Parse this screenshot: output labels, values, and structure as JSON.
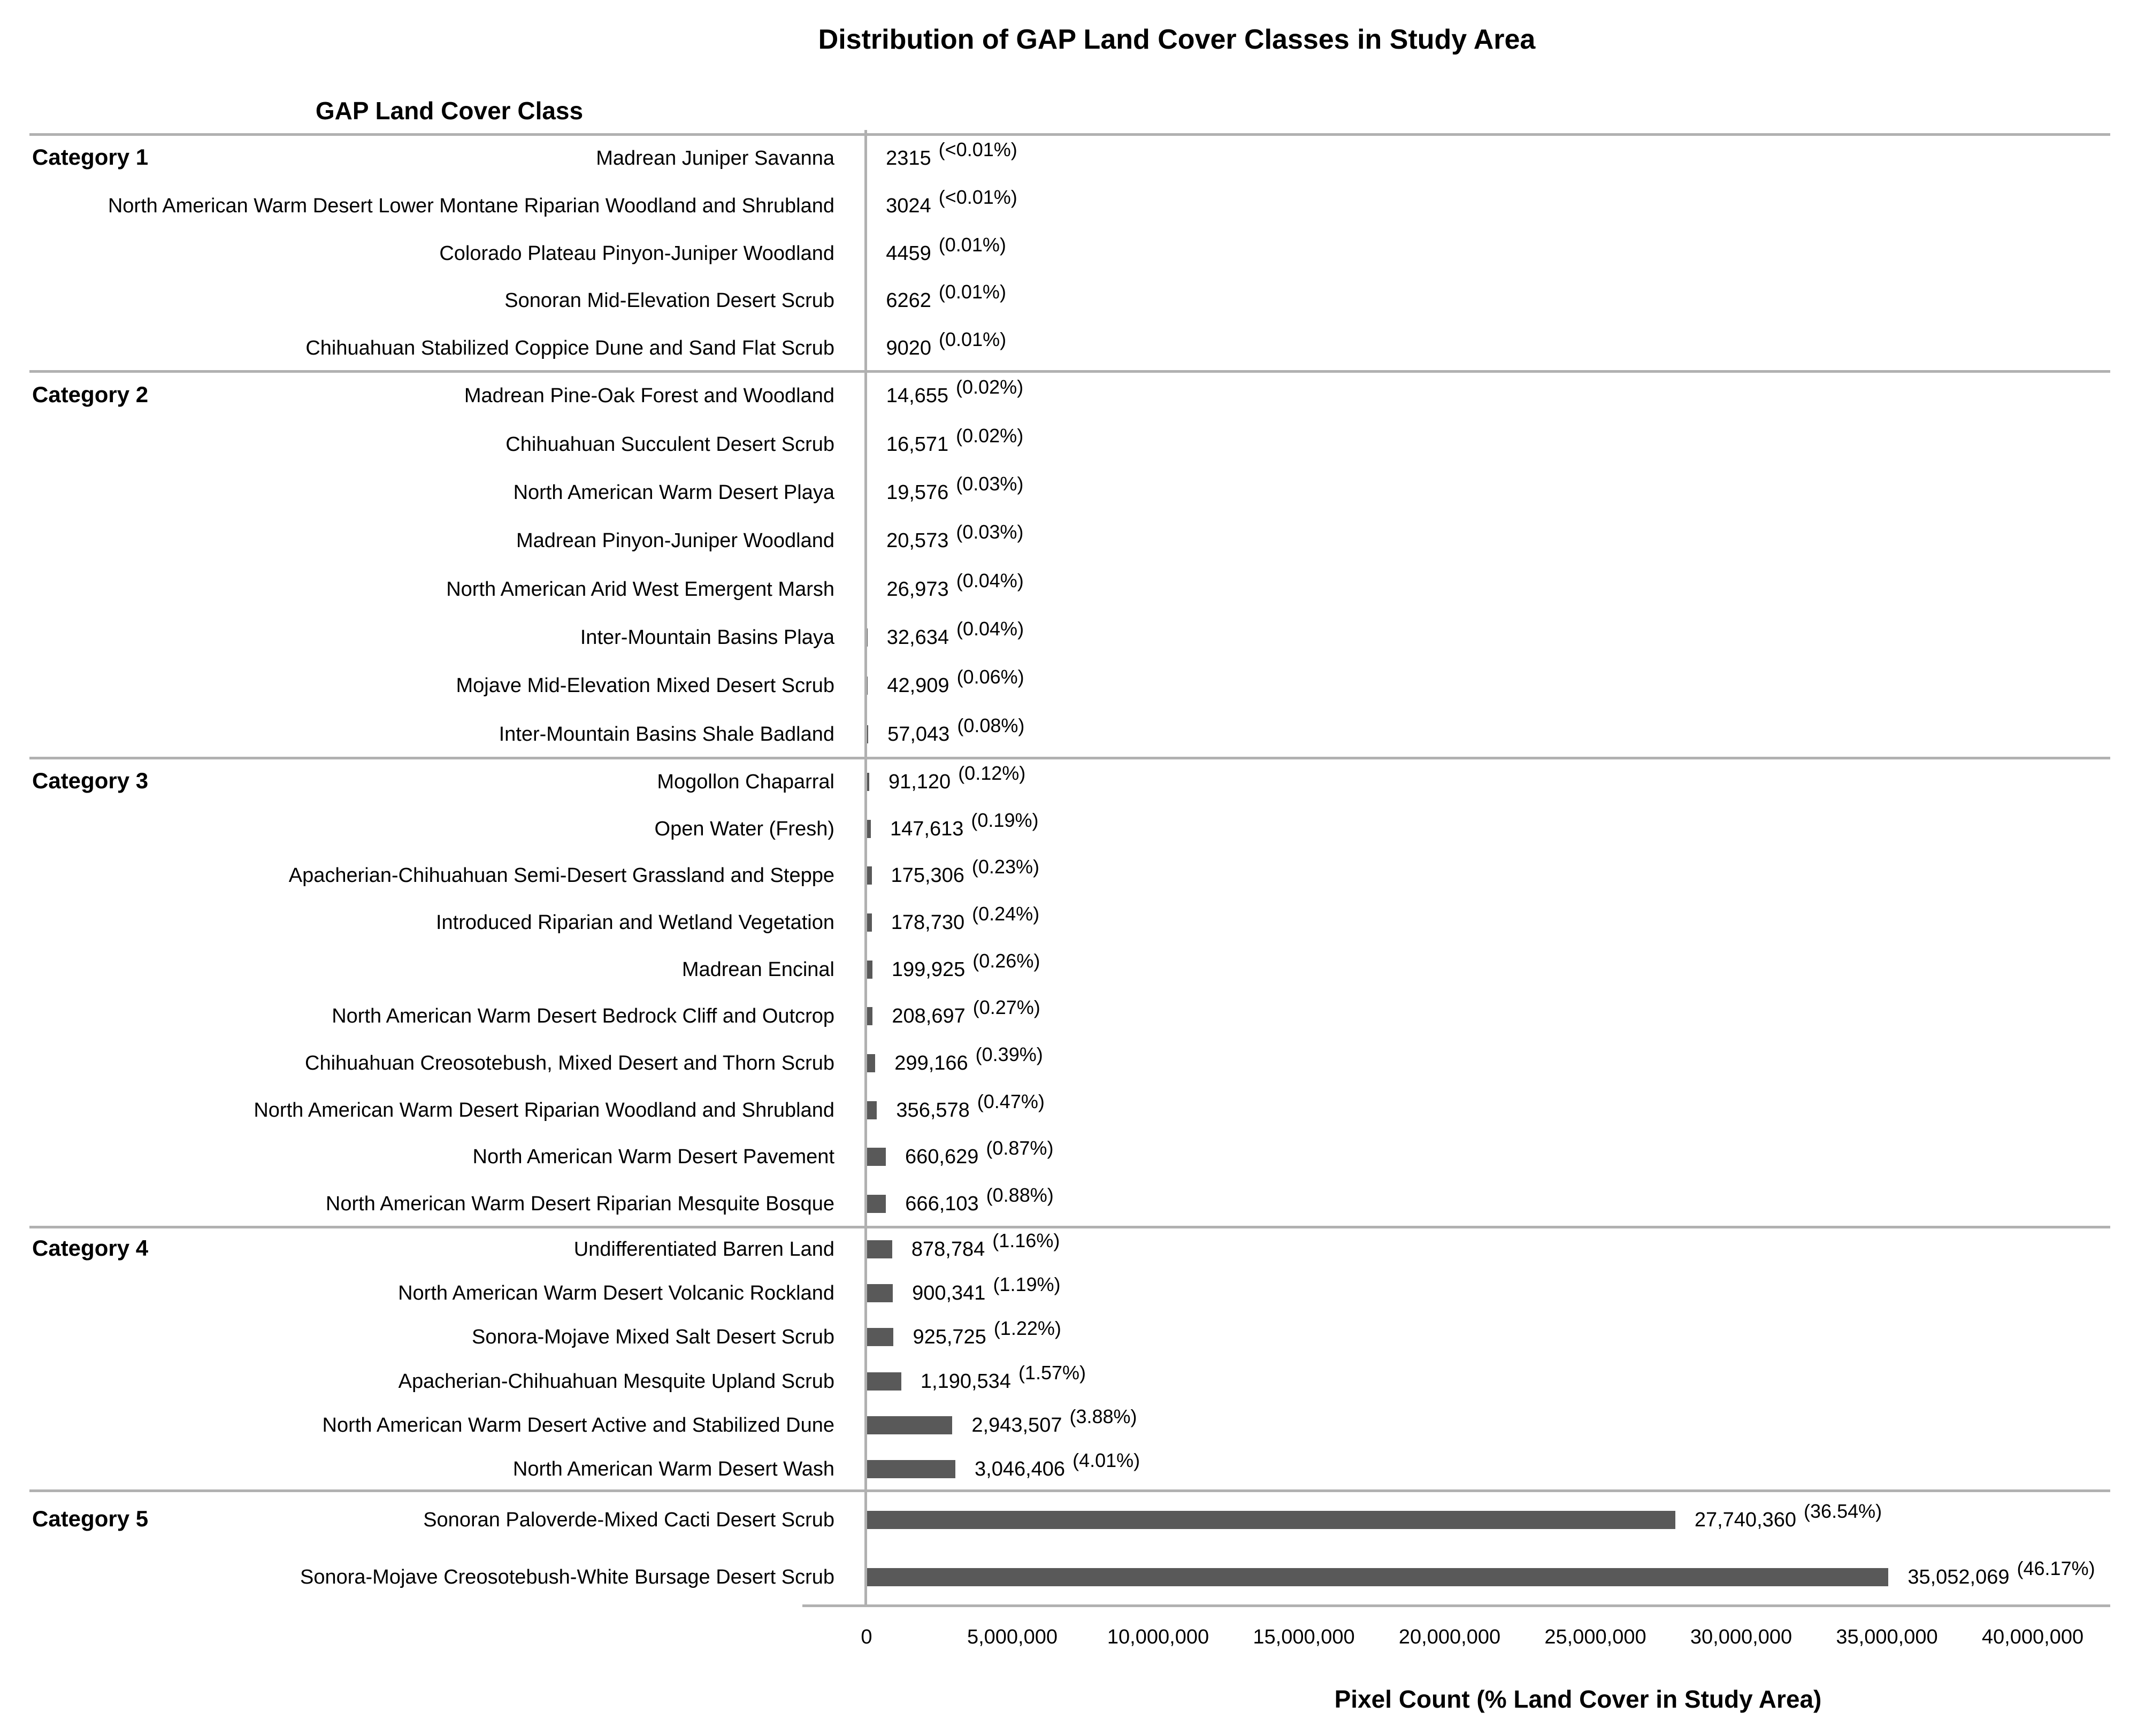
{
  "title": "Distribution of GAP Land Cover Classes in Study Area",
  "column_header": "GAP Land Cover Class",
  "axis_label": "Pixel Count (% Land Cover in Study Area)",
  "colors": {
    "bar": "#595959",
    "line": "#b1b1b1",
    "text": "#000000"
  },
  "chart_data": {
    "type": "bar",
    "orientation": "horizontal",
    "title": "Distribution of GAP Land Cover Classes in Study Area",
    "xlabel": "Pixel Count (% Land Cover in Study Area)",
    "ylabel": "GAP Land Cover Class",
    "xlim": [
      0,
      40000000
    ],
    "grid": false,
    "x_tick_values": [
      0,
      5000000,
      10000000,
      15000000,
      20000000,
      25000000,
      30000000,
      35000000,
      40000000
    ],
    "x_tick_labels": [
      "0",
      "5,000,000",
      "10,000,000",
      "15,000,000",
      "20,000,000",
      "25,000,000",
      "30,000,000",
      "35,000,000",
      "40,000,000"
    ],
    "groups": [
      {
        "category": "Category 1",
        "items": [
          {
            "label": "Madrean Juniper Savanna",
            "value": 2315,
            "value_label": "2315",
            "pct_label": "(<0.01%)"
          },
          {
            "label": "North American Warm Desert Lower Montane Riparian Woodland and Shrubland",
            "value": 3024,
            "value_label": "3024",
            "pct_label": "(<0.01%)"
          },
          {
            "label": "Colorado Plateau Pinyon-Juniper Woodland",
            "value": 4459,
            "value_label": "4459",
            "pct_label": "(0.01%)"
          },
          {
            "label": "Sonoran Mid-Elevation Desert Scrub",
            "value": 6262,
            "value_label": "6262",
            "pct_label": "(0.01%)"
          },
          {
            "label": "Chihuahuan Stabilized Coppice Dune and Sand Flat Scrub",
            "value": 9020,
            "value_label": "9020",
            "pct_label": "(0.01%)"
          }
        ]
      },
      {
        "category": "Category 2",
        "items": [
          {
            "label": "Madrean Pine-Oak Forest and Woodland",
            "value": 14655,
            "value_label": "14,655",
            "pct_label": "(0.02%)"
          },
          {
            "label": "Chihuahuan Succulent Desert Scrub",
            "value": 16571,
            "value_label": "16,571",
            "pct_label": "(0.02%)"
          },
          {
            "label": "North American Warm Desert Playa",
            "value": 19576,
            "value_label": "19,576",
            "pct_label": "(0.03%)"
          },
          {
            "label": "Madrean Pinyon-Juniper Woodland",
            "value": 20573,
            "value_label": "20,573",
            "pct_label": "(0.03%)"
          },
          {
            "label": "North American Arid West Emergent Marsh",
            "value": 26973,
            "value_label": "26,973",
            "pct_label": "(0.04%)"
          },
          {
            "label": "Inter-Mountain Basins Playa",
            "value": 32634,
            "value_label": "32,634",
            "pct_label": "(0.04%)"
          },
          {
            "label": "Mojave Mid-Elevation Mixed Desert Scrub",
            "value": 42909,
            "value_label": "42,909",
            "pct_label": "(0.06%)"
          },
          {
            "label": "Inter-Mountain Basins Shale Badland",
            "value": 57043,
            "value_label": "57,043",
            "pct_label": "(0.08%)"
          }
        ]
      },
      {
        "category": "Category 3",
        "items": [
          {
            "label": "Mogollon Chaparral",
            "value": 91120,
            "value_label": "91,120",
            "pct_label": "(0.12%)"
          },
          {
            "label": "Open Water (Fresh)",
            "value": 147613,
            "value_label": "147,613",
            "pct_label": "(0.19%)"
          },
          {
            "label": "Apacherian-Chihuahuan Semi-Desert Grassland and Steppe",
            "value": 175306,
            "value_label": "175,306",
            "pct_label": "(0.23%)"
          },
          {
            "label": "Introduced Riparian and Wetland Vegetation",
            "value": 178730,
            "value_label": "178,730",
            "pct_label": "(0.24%)"
          },
          {
            "label": "Madrean Encinal",
            "value": 199925,
            "value_label": "199,925",
            "pct_label": "(0.26%)"
          },
          {
            "label": "North American Warm Desert Bedrock Cliff and Outcrop",
            "value": 208697,
            "value_label": "208,697",
            "pct_label": "(0.27%)"
          },
          {
            "label": "Chihuahuan Creosotebush, Mixed Desert and Thorn Scrub",
            "value": 299166,
            "value_label": "299,166",
            "pct_label": "(0.39%)"
          },
          {
            "label": "North American Warm Desert Riparian Woodland and Shrubland",
            "value": 356578,
            "value_label": "356,578",
            "pct_label": "(0.47%)"
          },
          {
            "label": "North American Warm Desert Pavement",
            "value": 660629,
            "value_label": "660,629",
            "pct_label": "(0.87%)"
          },
          {
            "label": "North American Warm Desert Riparian Mesquite Bosque",
            "value": 666103,
            "value_label": "666,103",
            "pct_label": "(0.88%)"
          }
        ]
      },
      {
        "category": "Category 4",
        "items": [
          {
            "label": "Undifferentiated Barren Land",
            "value": 878784,
            "value_label": "878,784",
            "pct_label": "(1.16%)"
          },
          {
            "label": "North American Warm Desert Volcanic Rockland",
            "value": 900341,
            "value_label": "900,341",
            "pct_label": "(1.19%)"
          },
          {
            "label": "Sonora-Mojave Mixed Salt Desert Scrub",
            "value": 925725,
            "value_label": "925,725",
            "pct_label": "(1.22%)"
          },
          {
            "label": "Apacherian-Chihuahuan Mesquite Upland Scrub",
            "value": 1190534,
            "value_label": "1,190,534",
            "pct_label": "(1.57%)"
          },
          {
            "label": "North American Warm Desert Active and Stabilized Dune",
            "value": 2943507,
            "value_label": "2,943,507",
            "pct_label": "(3.88%)"
          },
          {
            "label": "North American Warm Desert Wash",
            "value": 3046406,
            "value_label": "3,046,406",
            "pct_label": "(4.01%)"
          }
        ]
      },
      {
        "category": "Category 5",
        "items": [
          {
            "label": "Sonoran Paloverde-Mixed Cacti Desert Scrub",
            "value": 27740360,
            "value_label": "27,740,360",
            "pct_label": "(36.54%)"
          },
          {
            "label": "Sonora-Mojave Creosotebush-White Bursage Desert Scrub",
            "value": 35052069,
            "value_label": "35,052,069",
            "pct_label": "(46.17%)"
          }
        ]
      }
    ]
  }
}
